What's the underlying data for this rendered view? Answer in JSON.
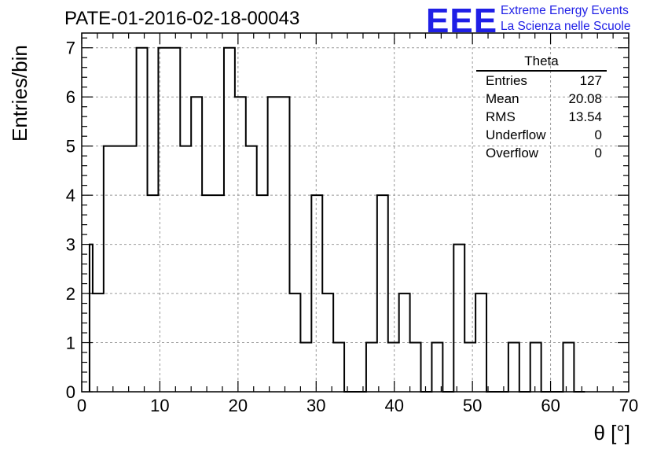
{
  "title": "PATE-01-2016-02-18-00043",
  "logo": {
    "mark": "EEE",
    "line1": "Extreme Energy Events",
    "line2": "La Scienza nelle Scuole",
    "color": "#1f1fe6"
  },
  "stats_box": {
    "name": "Theta",
    "rows": [
      {
        "label": "Entries",
        "value": "127"
      },
      {
        "label": "Mean",
        "value": "20.08"
      },
      {
        "label": "RMS",
        "value": "13.54"
      },
      {
        "label": "Underflow",
        "value": "0"
      },
      {
        "label": "Overflow",
        "value": "0"
      }
    ]
  },
  "chart_data": {
    "type": "bar",
    "style": "step-histogram",
    "title": "PATE-01-2016-02-18-00043",
    "xlabel": "θ [°]",
    "ylabel": "Entries/bin",
    "xlim": [
      0,
      70
    ],
    "ylim": [
      0,
      7.3
    ],
    "bin_width": 1.4,
    "x_ticks": [
      0,
      10,
      20,
      30,
      40,
      50,
      60,
      70
    ],
    "y_ticks": [
      0,
      1,
      2,
      3,
      4,
      5,
      6,
      7
    ],
    "grid": true,
    "bin_edges": [
      1.0,
      1.4,
      2.8,
      4.2,
      5.6,
      7.0,
      8.4,
      9.8,
      11.2,
      12.6,
      14.0,
      15.4,
      16.8,
      18.2,
      19.6,
      21.0,
      22.4,
      23.8,
      25.2,
      26.6,
      28.0,
      29.4,
      30.8,
      32.2,
      33.6,
      35.0,
      36.4,
      37.8,
      39.2,
      40.6,
      42.0,
      43.4,
      44.8,
      46.2,
      47.6,
      49.0,
      50.4,
      51.8,
      53.2,
      54.6,
      56.0,
      57.4,
      58.8,
      60.2,
      61.6,
      63.0
    ],
    "values": [
      3,
      2,
      5,
      5,
      5,
      7,
      4,
      7,
      7,
      5,
      6,
      4,
      4,
      7,
      6,
      5,
      4,
      6,
      6,
      2,
      1,
      4,
      2,
      1,
      0,
      0,
      1,
      4,
      1,
      2,
      1,
      0,
      1,
      0,
      3,
      1,
      2,
      0,
      0,
      1,
      0,
      1,
      0,
      0,
      1,
      0
    ]
  }
}
